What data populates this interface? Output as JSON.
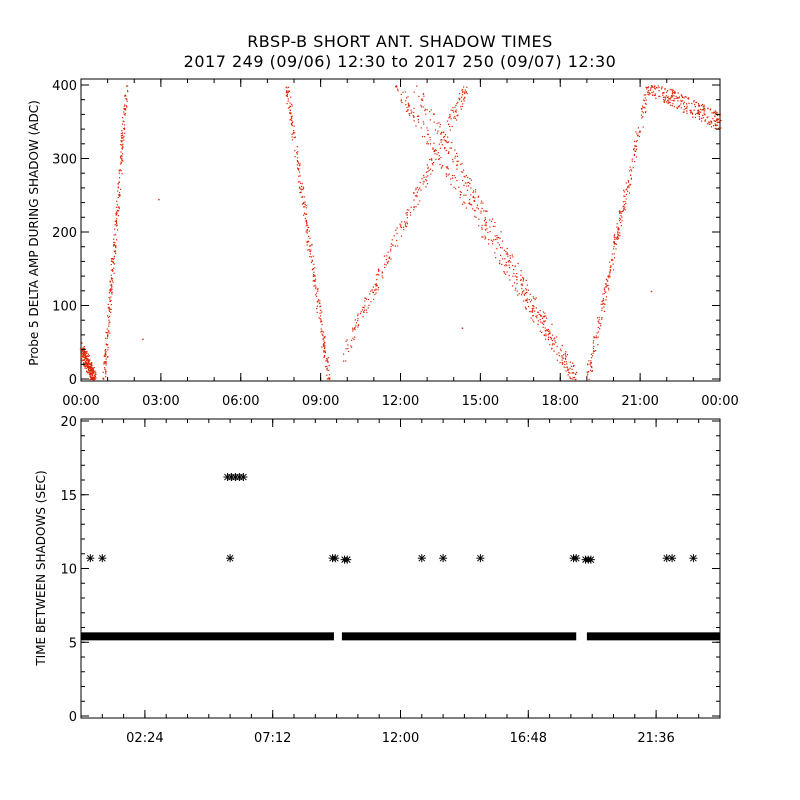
{
  "title_line1": "RBSP-B SHORT ANT. SHADOW TIMES",
  "title_line2": "2017 249 (09/06) 12:30 to 2017 250 (09/07) 12:30",
  "chart_data": [
    {
      "type": "scatter",
      "marker_color": "#e02000",
      "ylabel": "Probe 5 DELTA AMP DURING SHADOW (ADC)",
      "xlim": [
        0,
        24
      ],
      "ylim": [
        0,
        400
      ],
      "x_tick_labels": [
        "00:00",
        "03:00",
        "06:00",
        "09:00",
        "12:00",
        "15:00",
        "18:00",
        "21:00",
        "00:00"
      ],
      "y_tick_labels": [
        "0",
        "100",
        "200",
        "300",
        "400"
      ],
      "segments": [
        {
          "x": [
            0.0,
            0.5
          ],
          "y": [
            40,
            0
          ]
        },
        {
          "x": [
            0.85,
            1.7
          ],
          "y": [
            0,
            400
          ]
        },
        {
          "x": [
            7.7,
            9.3
          ],
          "y": [
            400,
            0
          ]
        },
        {
          "x": [
            9.8,
            14.5
          ],
          "y": [
            30,
            400
          ]
        },
        {
          "x": [
            12.5,
            18.6
          ],
          "y": [
            400,
            0
          ]
        },
        {
          "x": [
            11.8,
            18.5
          ],
          "y": [
            400,
            0
          ]
        },
        {
          "x": [
            19.0,
            21.3
          ],
          "y": [
            0,
            400
          ]
        },
        {
          "x": [
            21.3,
            24.0
          ],
          "y": [
            400,
            350
          ]
        }
      ],
      "isolated_points": [
        {
          "x": 2.9,
          "y": 245
        },
        {
          "x": 2.3,
          "y": 55
        },
        {
          "x": 14.3,
          "y": 70
        },
        {
          "x": 21.4,
          "y": 120
        }
      ]
    },
    {
      "type": "scatter",
      "marker": "asterisk",
      "marker_color": "#000000",
      "ylabel": "TIME BETWEEN SHADOWS (SEC)",
      "xlim": [
        0,
        24
      ],
      "ylim": [
        0,
        20
      ],
      "x_tick_labels": [
        "02:24",
        "07:12",
        "12:00",
        "16:48",
        "21:36"
      ],
      "y_tick_labels": [
        "0",
        "5",
        "10",
        "15",
        "20"
      ],
      "baseline_band": {
        "y": 5.4,
        "x_ranges": [
          [
            0.0,
            9.5
          ],
          [
            9.8,
            18.6
          ],
          [
            19.0,
            24.0
          ]
        ]
      },
      "points": [
        {
          "x": 0.35,
          "y": 10.7
        },
        {
          "x": 0.8,
          "y": 10.7
        },
        {
          "x": 5.6,
          "y": 10.7
        },
        {
          "x": 5.5,
          "y": 16.2
        },
        {
          "x": 5.65,
          "y": 16.2
        },
        {
          "x": 5.8,
          "y": 16.2
        },
        {
          "x": 5.95,
          "y": 16.2
        },
        {
          "x": 6.1,
          "y": 16.2
        },
        {
          "x": 9.45,
          "y": 10.7
        },
        {
          "x": 9.55,
          "y": 10.7
        },
        {
          "x": 9.9,
          "y": 10.6
        },
        {
          "x": 10.0,
          "y": 10.6
        },
        {
          "x": 12.8,
          "y": 10.7
        },
        {
          "x": 13.6,
          "y": 10.7
        },
        {
          "x": 15.0,
          "y": 10.7
        },
        {
          "x": 18.5,
          "y": 10.7
        },
        {
          "x": 18.6,
          "y": 10.7
        },
        {
          "x": 18.95,
          "y": 10.6
        },
        {
          "x": 19.05,
          "y": 10.6
        },
        {
          "x": 19.15,
          "y": 10.6
        },
        {
          "x": 22.0,
          "y": 10.7
        },
        {
          "x": 22.2,
          "y": 10.7
        },
        {
          "x": 23.0,
          "y": 10.7
        }
      ]
    }
  ]
}
